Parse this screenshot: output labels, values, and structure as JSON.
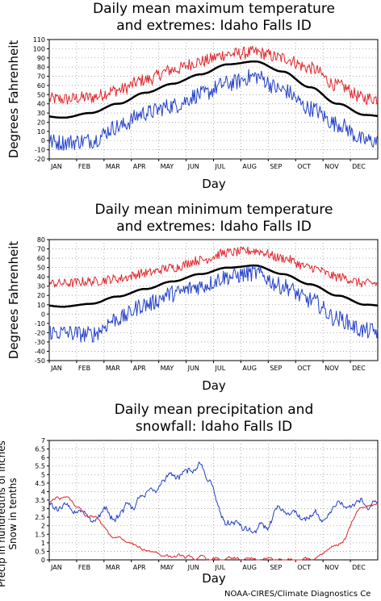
{
  "credit": "NOAA-CIRES/Climate Diagnostics Ce",
  "colors": {
    "max_extreme": "#e0262c",
    "mean": "#000000",
    "min_extreme": "#2340c8",
    "precip": "#2340c8",
    "snow": "#e0262c"
  },
  "chart_data": [
    {
      "type": "line",
      "title": "Daily mean maximum temperature\nand extremes: Idaho Falls ID",
      "xlabel": "Day",
      "ylabel": "Degrees Fahrenheit",
      "x_ticks": [
        "JAN",
        "FEB",
        "MAR",
        "APR",
        "MAY",
        "JUN",
        "JUL",
        "AUG",
        "SEP",
        "OCT",
        "NOV",
        "DEC"
      ],
      "ylim": [
        -20,
        110
      ],
      "y_ticks": [
        -20,
        -10,
        0,
        10,
        20,
        30,
        40,
        50,
        60,
        70,
        80,
        90,
        100,
        110
      ],
      "grid": true,
      "months": [
        "JAN",
        "FEB",
        "MAR",
        "APR",
        "MAY",
        "JUN",
        "JUL",
        "AUG",
        "SEP",
        "OCT",
        "NOV",
        "DEC"
      ],
      "series": [
        {
          "color": "#e0262c",
          "values": [
            45,
            47,
            55,
            66,
            77,
            86,
            94,
            96,
            90,
            79,
            60,
            46
          ]
        },
        {
          "color": "#000000",
          "values": [
            25,
            30,
            40,
            52,
            62,
            72,
            83,
            86,
            75,
            58,
            40,
            28
          ]
        },
        {
          "color": "#2340c8",
          "values": [
            -2,
            0,
            15,
            30,
            38,
            50,
            62,
            70,
            55,
            35,
            18,
            0
          ]
        }
      ]
    },
    {
      "type": "line",
      "title": "Daily mean minimum temperature\nand extremes: Idaho Falls ID",
      "xlabel": "Day",
      "ylabel": "Degrees Fahrenheit",
      "x_ticks": [
        "JAN",
        "FEB",
        "MAR",
        "APR",
        "MAY",
        "JUN",
        "JUL",
        "AUG",
        "SEP",
        "OCT",
        "NOV",
        "DEC"
      ],
      "ylim": [
        -50,
        80
      ],
      "y_ticks": [
        -50,
        -40,
        -30,
        -20,
        -10,
        0,
        10,
        20,
        30,
        40,
        50,
        60,
        70,
        80
      ],
      "grid": true,
      "months": [
        "JAN",
        "FEB",
        "MAR",
        "APR",
        "MAY",
        "JUN",
        "JUL",
        "AUG",
        "SEP",
        "OCT",
        "NOV",
        "DEC"
      ],
      "series": [
        {
          "color": "#e0262c",
          "values": [
            33,
            35,
            38,
            44,
            50,
            58,
            66,
            68,
            60,
            50,
            40,
            33
          ]
        },
        {
          "color": "#000000",
          "values": [
            8,
            11,
            19,
            27,
            35,
            43,
            50,
            52,
            43,
            32,
            20,
            10
          ]
        },
        {
          "color": "#2340c8",
          "values": [
            -20,
            -22,
            -5,
            10,
            22,
            30,
            40,
            44,
            30,
            15,
            -5,
            -18
          ]
        }
      ]
    },
    {
      "type": "line",
      "title": "Daily mean precipitation and\nsnowfall: Idaho Falls ID",
      "xlabel": "Day",
      "ylabel": "Precip in hundredths of inches\nSnow in tenths",
      "x_ticks": [
        "JAN",
        "FEB",
        "MAR",
        "APR",
        "MAY",
        "JUN",
        "JUL",
        "AUG",
        "SEP",
        "OCT",
        "NOV",
        "DEC"
      ],
      "ylim": [
        0,
        7
      ],
      "y_ticks": [
        0,
        0.5,
        1,
        1.5,
        2,
        2.5,
        3,
        3.5,
        4,
        4.5,
        5,
        5.5,
        6,
        6.5,
        7
      ],
      "grid": true,
      "months": [
        "JAN",
        "FEB",
        "MAR",
        "APR",
        "MAY",
        "JUN",
        "JUL",
        "AUG",
        "SEP",
        "OCT",
        "NOV",
        "DEC"
      ],
      "series": [
        {
          "color": "#2340c8",
          "values": [
            3.0,
            2.6,
            2.8,
            3.6,
            5.0,
            5.3,
            2.2,
            1.6,
            2.6,
            2.5,
            3.0,
            3.3
          ]
        },
        {
          "color": "#e0262c",
          "values": [
            3.6,
            2.6,
            1.2,
            0.6,
            0.2,
            0.05,
            0.0,
            0.0,
            0.0,
            0.1,
            0.9,
            3.1
          ]
        }
      ]
    }
  ]
}
